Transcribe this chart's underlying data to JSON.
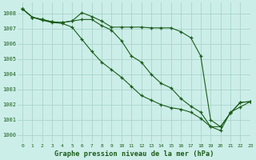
{
  "title": "Graphe pression niveau de la mer (hPa)",
  "background_color": "#cceee8",
  "grid_color": "#aad4cc",
  "line_color": "#1a5c1a",
  "xlim": [
    -0.5,
    23
  ],
  "ylim": [
    999.5,
    1008.7
  ],
  "yticks": [
    1000,
    1001,
    1002,
    1003,
    1004,
    1005,
    1006,
    1007,
    1008
  ],
  "xticks": [
    0,
    1,
    2,
    3,
    4,
    5,
    6,
    7,
    8,
    9,
    10,
    11,
    12,
    13,
    14,
    15,
    16,
    17,
    18,
    19,
    20,
    21,
    22,
    23
  ],
  "series1_x": [
    0,
    1,
    2,
    3,
    4,
    5,
    6,
    7,
    8,
    9,
    10,
    11,
    12,
    13,
    14,
    15,
    16,
    17,
    18,
    19,
    20,
    21,
    22,
    23
  ],
  "series1_y": [
    1008.3,
    1007.75,
    1007.6,
    1007.45,
    1007.4,
    1007.5,
    1008.05,
    1007.8,
    1007.5,
    1007.1,
    1007.1,
    1007.1,
    1007.1,
    1007.05,
    1007.05,
    1007.05,
    1006.8,
    1006.4,
    1005.2,
    1001.0,
    1000.55,
    1001.45,
    1002.15,
    1002.2
  ],
  "series2_x": [
    0,
    1,
    2,
    3,
    4,
    5,
    6,
    7,
    8,
    9,
    10,
    11,
    12,
    13,
    14,
    15,
    16,
    17,
    18,
    19,
    20,
    21,
    22,
    23
  ],
  "series2_y": [
    1008.3,
    1007.75,
    1007.6,
    1007.45,
    1007.4,
    1007.5,
    1007.6,
    1007.6,
    1007.2,
    1006.9,
    1006.2,
    1005.2,
    1004.8,
    1004.0,
    1003.4,
    1003.1,
    1002.4,
    1001.9,
    1001.5,
    1000.55,
    1000.55,
    1001.45,
    1002.15,
    1002.2
  ],
  "series3_x": [
    0,
    1,
    2,
    3,
    4,
    5,
    6,
    7,
    8,
    9,
    10,
    11,
    12,
    13,
    14,
    15,
    16,
    17,
    18,
    19,
    20,
    21,
    22,
    23
  ],
  "series3_y": [
    1008.3,
    1007.75,
    1007.55,
    1007.4,
    1007.35,
    1007.1,
    1006.3,
    1005.5,
    1004.8,
    1004.3,
    1003.8,
    1003.2,
    1002.6,
    1002.3,
    1002.0,
    1001.8,
    1001.7,
    1001.5,
    1001.1,
    1000.55,
    1000.3,
    1001.5,
    1001.85,
    1002.2
  ]
}
